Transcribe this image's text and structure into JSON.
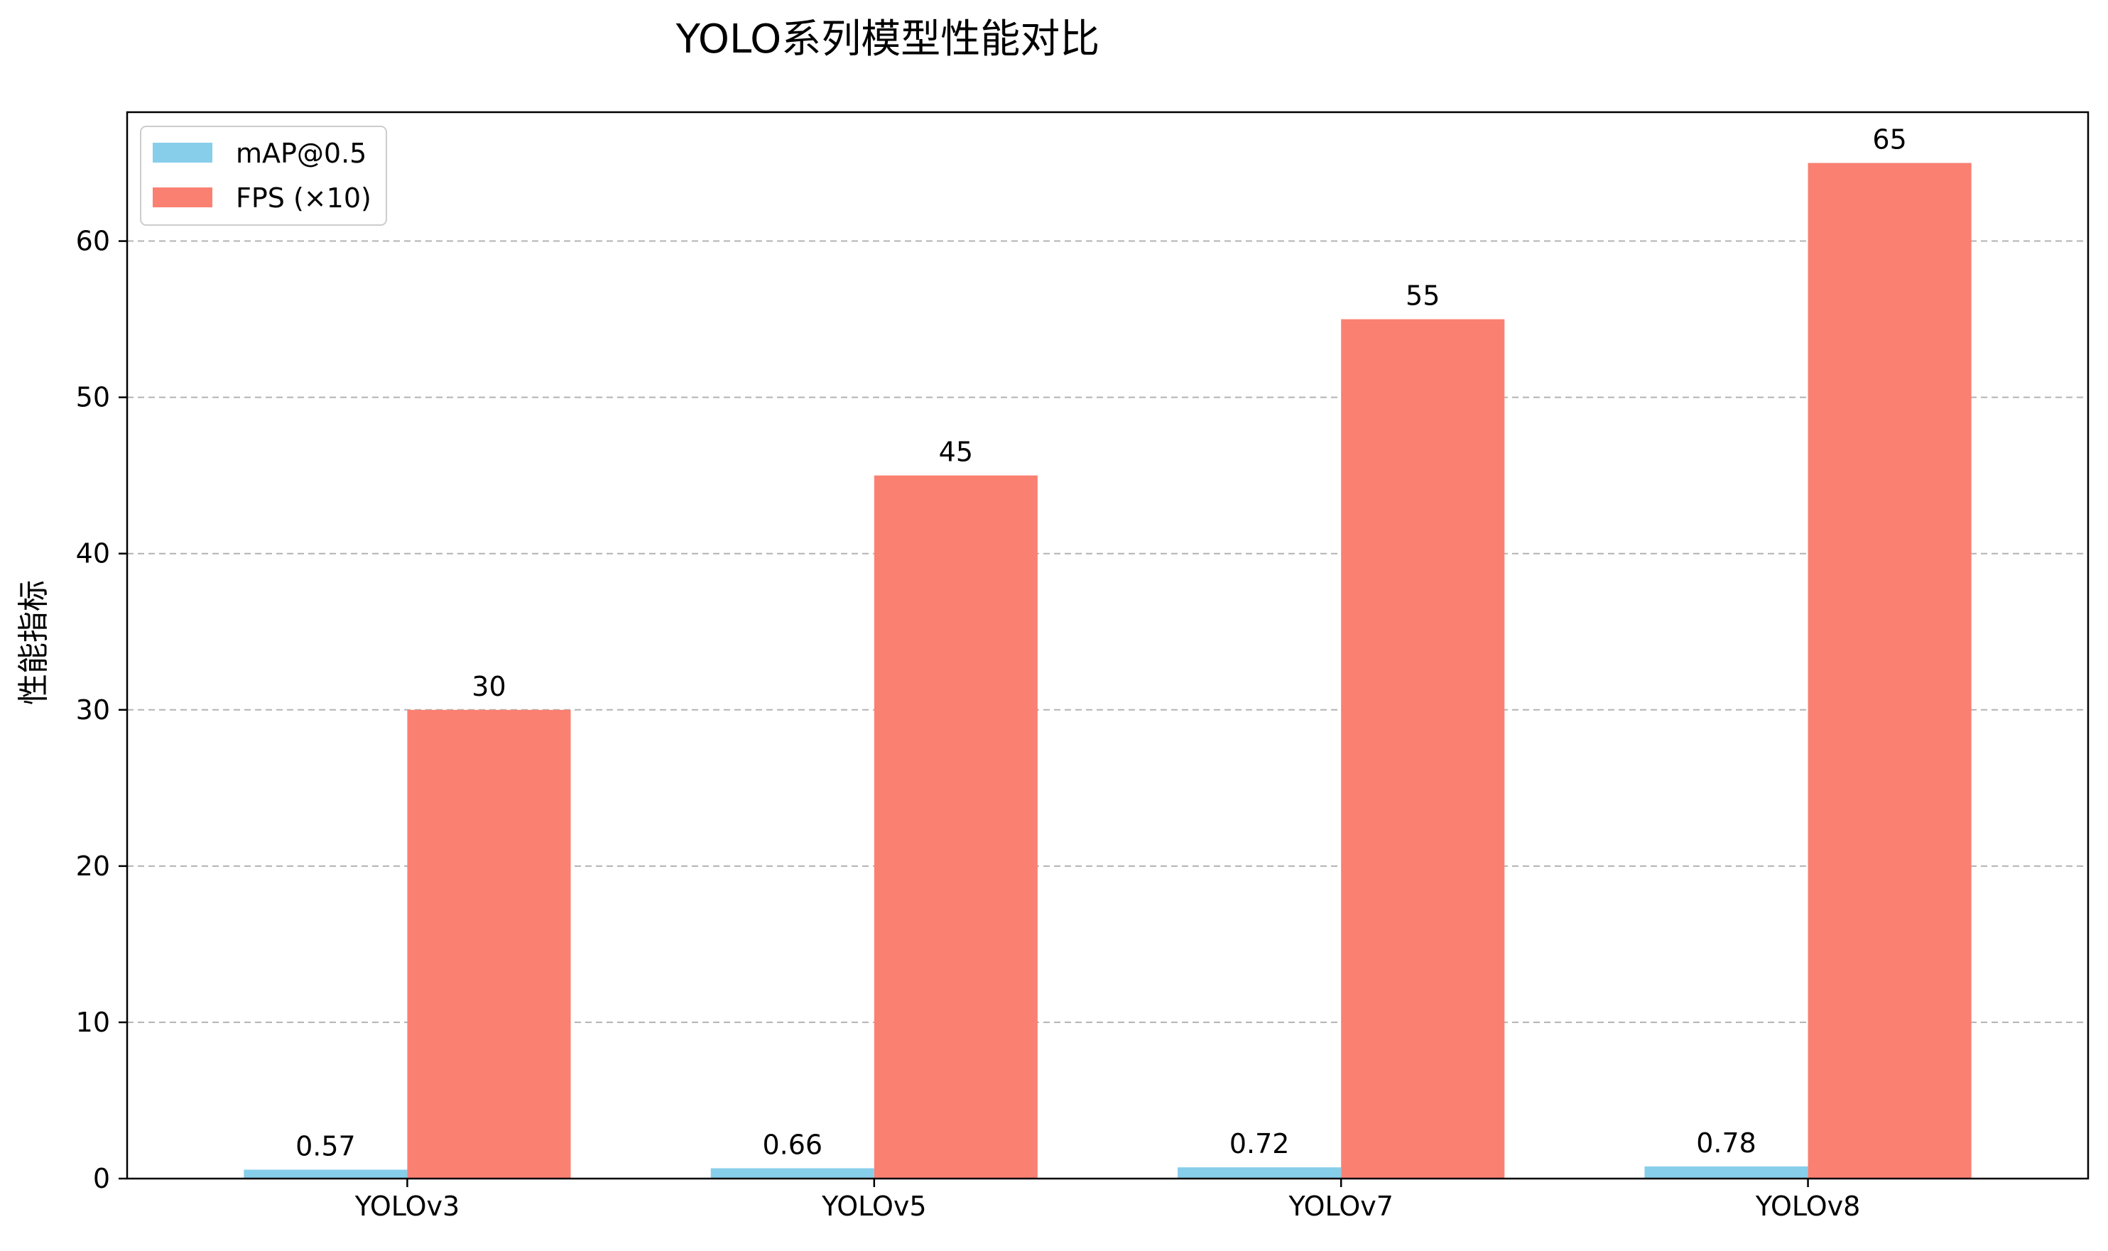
{
  "chart_data": {
    "type": "bar",
    "title": "YOLO系列模型性能对比",
    "xlabel": "",
    "ylabel": "性能指标",
    "categories": [
      "YOLOv3",
      "YOLOv5",
      "YOLOv7",
      "YOLOv8"
    ],
    "series": [
      {
        "name": "mAP@0.5",
        "values": [
          0.57,
          0.66,
          0.72,
          0.78
        ],
        "color": "#87CEEB"
      },
      {
        "name": "FPS (×10)",
        "values": [
          30,
          45,
          55,
          65
        ],
        "color": "#FA8072"
      }
    ],
    "ylim": [
      0,
      68.25
    ],
    "yticks": [
      0,
      10,
      20,
      30,
      40,
      50,
      60
    ],
    "grid": {
      "y": true,
      "x": false,
      "style": "dashed"
    },
    "legend": "top-left"
  }
}
